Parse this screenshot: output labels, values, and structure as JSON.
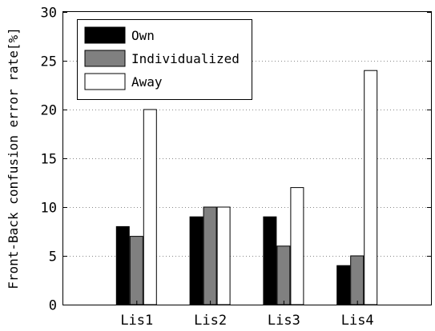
{
  "chart_data": {
    "type": "bar",
    "categories": [
      "Lis1",
      "Lis2",
      "Lis3",
      "Lis4"
    ],
    "series": [
      {
        "name": "Own",
        "values": [
          8,
          9,
          9,
          4
        ],
        "color": "#000000"
      },
      {
        "name": "Individualized",
        "values": [
          7,
          10,
          6,
          5
        ],
        "color": "#808080"
      },
      {
        "name": "Away",
        "values": [
          20,
          10,
          12,
          24
        ],
        "color": "#ffffff"
      }
    ],
    "ylabel": "Front-Back confusion error rate[%]",
    "xlabel": "",
    "ylim": [
      0,
      30
    ],
    "yticks": [
      "0",
      "5",
      "10",
      "15",
      "20",
      "25",
      "30"
    ],
    "grid": true,
    "legend_position": "top-left"
  }
}
